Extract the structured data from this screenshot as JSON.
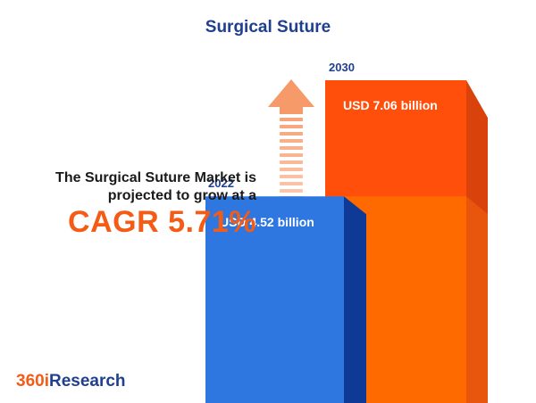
{
  "chart_data": {
    "type": "bar",
    "title": "Surgical Suture",
    "categories": [
      "2022",
      "2030"
    ],
    "values": [
      4.52,
      7.06
    ],
    "value_labels": [
      "USD 4.52 billion",
      "USD 7.06 billion"
    ],
    "unit": "USD billion",
    "colors": {
      "bar_2022": "#2f77e0",
      "bar_2022_side": "#0e3a96",
      "bar_2030": "#ff4f0a",
      "bar_2030_side": "#d9430b",
      "bar_2030_lower": "#ff6a00",
      "arrow": "#f79a6a"
    },
    "legend": "none",
    "grid": false
  },
  "headline": {
    "line1": "The Surgical Suture Market is",
    "line2": "projected to grow at a",
    "cagr": "CAGR 5.71%"
  },
  "logo": {
    "prefix": "360i",
    "suffix": "Research"
  }
}
